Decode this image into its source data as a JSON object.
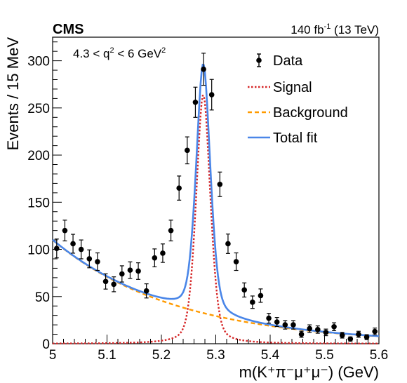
{
  "header": {
    "experiment": "CMS",
    "lumi": "140 fb",
    "lumi_exp": "-1",
    "lumi_energy": "(13 TeV)"
  },
  "region": {
    "pre": "4.3 < q",
    "exp": "2",
    "mid": " < 6 GeV",
    "exp2": "2"
  },
  "legend": {
    "data": "Data",
    "signal": "Signal",
    "background": "Background",
    "total": "Total fit"
  },
  "colors": {
    "data": "#000000",
    "signal": "#d62728",
    "background": "#ff9a00",
    "total": "#4a86e8"
  },
  "chart_data": {
    "type": "scatter",
    "xlabel": "m(K⁺π⁻μ⁺μ⁻) (GeV)",
    "ylabel": "Events / 15 MeV",
    "xlim": [
      5.0,
      5.6
    ],
    "ylim": [
      0,
      325
    ],
    "x_ticks": [
      5,
      5.1,
      5.2,
      5.3,
      5.4,
      5.5,
      5.6
    ],
    "x_tick_labels": [
      "5",
      "5.1",
      "5.2",
      "5.3",
      "5.4",
      "5.5",
      "5.6"
    ],
    "y_ticks": [
      0,
      50,
      100,
      150,
      200,
      250,
      300
    ],
    "y_tick_labels": [
      "0",
      "50",
      "100",
      "150",
      "200",
      "250",
      "300"
    ],
    "series": [
      {
        "name": "Data",
        "x": [
          5.0075,
          5.0225,
          5.0375,
          5.0525,
          5.0675,
          5.0825,
          5.0975,
          5.1125,
          5.1275,
          5.1425,
          5.1575,
          5.1725,
          5.1875,
          5.2025,
          5.2175,
          5.2325,
          5.2475,
          5.2625,
          5.2775,
          5.2925,
          5.3075,
          5.3225,
          5.3375,
          5.3525,
          5.3675,
          5.3825,
          5.3975,
          5.4125,
          5.4275,
          5.4425,
          5.4575,
          5.4725,
          5.4875,
          5.5025,
          5.5175,
          5.5325,
          5.5475,
          5.5625,
          5.5775,
          5.5925
        ],
        "y": [
          101,
          120,
          106,
          100,
          90,
          87,
          66,
          63,
          74,
          78,
          77,
          56,
          91,
          96,
          120,
          165,
          205,
          256,
          291,
          264,
          169,
          106,
          87,
          57,
          44,
          51,
          27,
          23,
          20,
          20,
          10,
          16,
          15,
          12,
          18,
          9,
          5,
          10,
          7,
          13
        ],
        "yerr": [
          10,
          11,
          10,
          10,
          9.5,
          9.3,
          8.1,
          7.9,
          8.6,
          8.8,
          8.8,
          7.5,
          9.5,
          9.8,
          11,
          12.8,
          14.3,
          16,
          17,
          16.2,
          13,
          10.3,
          9.3,
          7.5,
          6.6,
          7.1,
          5.2,
          4.8,
          4.5,
          4.5,
          3.2,
          4,
          3.9,
          3.5,
          4.2,
          3,
          2.2,
          3.2,
          2.6,
          3.6
        ]
      }
    ],
    "curves": {
      "signal": {
        "name": "Signal",
        "mean": 5.277,
        "sigma": 0.0135,
        "gamma": 0.028,
        "peak": 264
      },
      "background": {
        "name": "Background",
        "a": 110,
        "b": 4.4
      },
      "total": {
        "name": "Total fit"
      }
    }
  }
}
